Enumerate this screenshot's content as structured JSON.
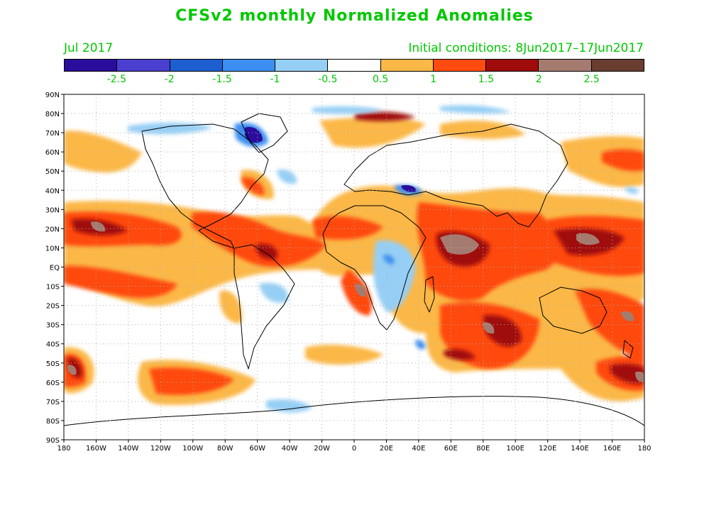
{
  "title": "CFSv2 monthly Normalized Anomalies",
  "month": "Jul 2017",
  "initial_conditions": "Initial conditions: 8Jun2017–17Jun2017",
  "colorbar": {
    "colors": [
      "#2a0d9c",
      "#4a3fd0",
      "#1e5fd0",
      "#3c8ff0",
      "#96cff5",
      "#ffffff",
      "#fbb847",
      "#ff4a10",
      "#a00b0b",
      "#a57b70",
      "#6a3d31"
    ],
    "labels": [
      "-2.5",
      "-2",
      "-1.5",
      "-1",
      "-0.5",
      "0.5",
      "1",
      "1.5",
      "2",
      "2.5"
    ]
  },
  "axes": {
    "lat_labels": [
      "90N",
      "80N",
      "70N",
      "60N",
      "50N",
      "40N",
      "30N",
      "20N",
      "10N",
      "EQ",
      "10S",
      "20S",
      "30S",
      "40S",
      "50S",
      "60S",
      "70S",
      "80S",
      "90S"
    ],
    "lon_labels": [
      "180",
      "160W",
      "140W",
      "120W",
      "100W",
      "80W",
      "60W",
      "40W",
      "20W",
      "0",
      "20E",
      "40E",
      "60E",
      "80E",
      "100E",
      "120E",
      "140E",
      "160E",
      "180"
    ]
  }
}
